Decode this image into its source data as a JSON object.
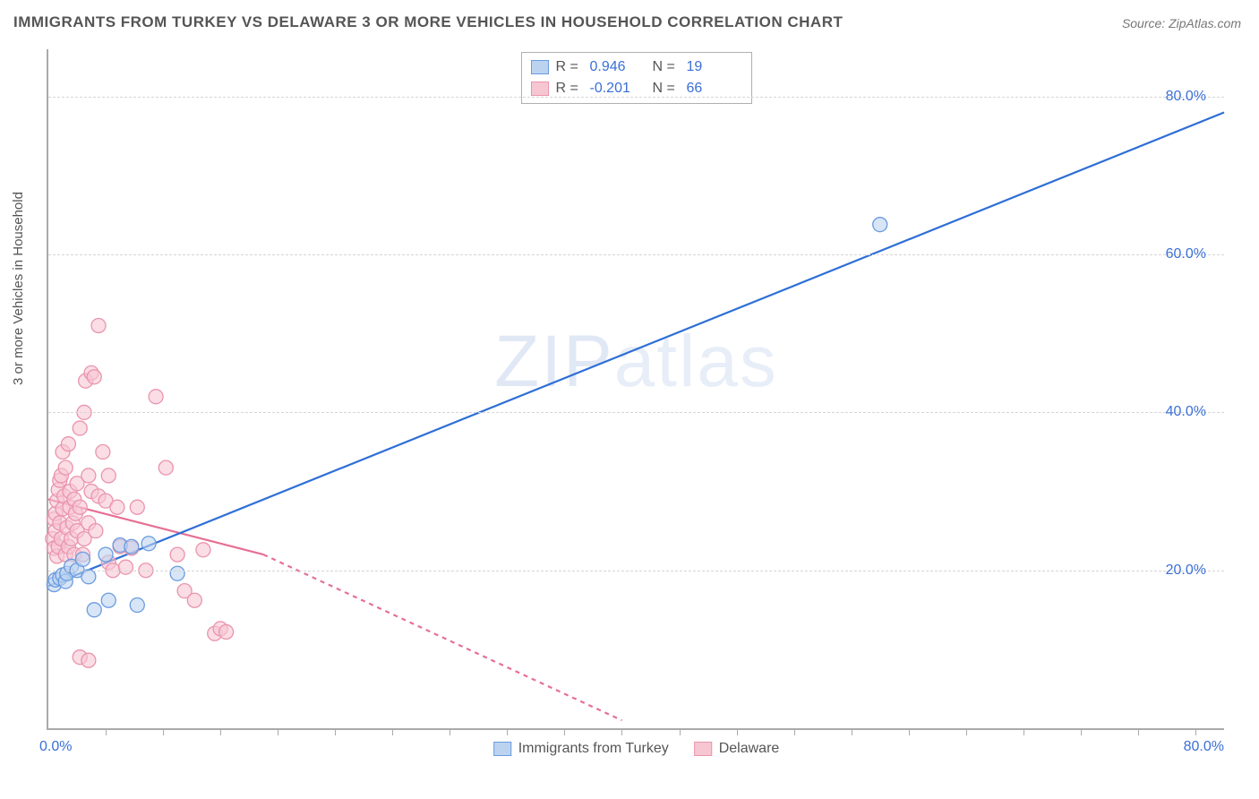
{
  "title": "IMMIGRANTS FROM TURKEY VS DELAWARE 3 OR MORE VEHICLES IN HOUSEHOLD CORRELATION CHART",
  "source": "Source: ZipAtlas.com",
  "watermark": {
    "part1": "ZIP",
    "part2": "atlas"
  },
  "axes": {
    "ylabel": "3 or more Vehicles in Household",
    "x_min": 0,
    "x_max": 82,
    "y_min": 0,
    "y_max": 86,
    "x_tick_left": "0.0%",
    "x_tick_right": "80.0%",
    "y_ticks": [
      {
        "value": 20,
        "label": "20.0%"
      },
      {
        "value": 40,
        "label": "40.0%"
      },
      {
        "value": 60,
        "label": "60.0%"
      },
      {
        "value": 80,
        "label": "80.0%"
      }
    ],
    "x_minor_ticks": [
      4,
      8,
      12,
      16,
      20,
      24,
      28,
      32,
      36,
      40,
      44,
      48,
      52,
      56,
      60,
      64,
      68,
      72,
      76,
      80
    ],
    "axis_color": "#aaaaaa",
    "grid_color": "#d5d5d5",
    "tick_label_color": "#3b6fd6",
    "tick_fontsize": 16,
    "ylabel_fontsize": 15,
    "ylabel_color": "#555555"
  },
  "series_a": {
    "name": "Immigrants from Turkey",
    "color_fill": "#bcd3f0",
    "color_stroke": "#6a9be0",
    "line_color": "#2e6fd6",
    "r_label": "R =",
    "r_value": "0.946",
    "n_label": "N =",
    "n_value": "19",
    "points": [
      [
        0.4,
        18.2
      ],
      [
        0.5,
        18.8
      ],
      [
        0.8,
        19.0
      ],
      [
        1.0,
        19.4
      ],
      [
        1.2,
        18.6
      ],
      [
        1.3,
        19.6
      ],
      [
        1.6,
        20.5
      ],
      [
        2.0,
        20.0
      ],
      [
        2.4,
        21.4
      ],
      [
        2.8,
        19.2
      ],
      [
        3.2,
        15.0
      ],
      [
        4.0,
        22.0
      ],
      [
        4.2,
        16.2
      ],
      [
        5.0,
        23.2
      ],
      [
        5.8,
        23.0
      ],
      [
        6.2,
        15.6
      ],
      [
        7.0,
        23.4
      ],
      [
        9.0,
        19.6
      ],
      [
        58.0,
        63.8
      ]
    ],
    "trend": {
      "x1": 0,
      "y1": 18.0,
      "x2": 82,
      "y2": 78.0
    }
  },
  "series_b": {
    "name": "Delaware",
    "color_fill": "#f6c7d3",
    "color_stroke": "#ea94ad",
    "line_color": "#e66f94",
    "r_label": "R =",
    "r_value": "-0.201",
    "n_label": "N =",
    "n_value": "66",
    "points": [
      [
        0.3,
        24.0
      ],
      [
        0.4,
        26.5
      ],
      [
        0.4,
        22.8
      ],
      [
        0.5,
        27.2
      ],
      [
        0.5,
        25.0
      ],
      [
        0.6,
        21.8
      ],
      [
        0.6,
        28.8
      ],
      [
        0.7,
        23.0
      ],
      [
        0.7,
        30.2
      ],
      [
        0.8,
        26.0
      ],
      [
        0.8,
        31.4
      ],
      [
        0.9,
        24.0
      ],
      [
        0.9,
        32.0
      ],
      [
        1.0,
        27.8
      ],
      [
        1.0,
        35.0
      ],
      [
        1.1,
        29.4
      ],
      [
        1.2,
        22.0
      ],
      [
        1.2,
        33.0
      ],
      [
        1.3,
        25.4
      ],
      [
        1.4,
        36.0
      ],
      [
        1.4,
        23.0
      ],
      [
        1.5,
        28.0
      ],
      [
        1.5,
        30.0
      ],
      [
        1.6,
        24.0
      ],
      [
        1.7,
        26.0
      ],
      [
        1.8,
        22.0
      ],
      [
        1.8,
        29.0
      ],
      [
        1.9,
        27.2
      ],
      [
        2.0,
        25.0
      ],
      [
        2.0,
        31.0
      ],
      [
        2.2,
        38.0
      ],
      [
        2.2,
        28.0
      ],
      [
        2.4,
        22.0
      ],
      [
        2.5,
        24.0
      ],
      [
        2.5,
        40.0
      ],
      [
        2.6,
        44.0
      ],
      [
        2.8,
        26.0
      ],
      [
        2.8,
        32.0
      ],
      [
        3.0,
        45.0
      ],
      [
        3.0,
        30.0
      ],
      [
        3.2,
        44.5
      ],
      [
        3.3,
        25.0
      ],
      [
        3.5,
        51.0
      ],
      [
        3.5,
        29.4
      ],
      [
        3.8,
        35.0
      ],
      [
        4.0,
        28.8
      ],
      [
        4.2,
        32.0
      ],
      [
        4.2,
        21.0
      ],
      [
        4.5,
        20.0
      ],
      [
        4.8,
        28.0
      ],
      [
        5.0,
        23.0
      ],
      [
        5.4,
        20.4
      ],
      [
        5.8,
        22.8
      ],
      [
        6.2,
        28.0
      ],
      [
        6.8,
        20.0
      ],
      [
        7.5,
        42.0
      ],
      [
        8.2,
        33.0
      ],
      [
        9.0,
        22.0
      ],
      [
        9.5,
        17.4
      ],
      [
        10.2,
        16.2
      ],
      [
        10.8,
        22.6
      ],
      [
        11.6,
        12.0
      ],
      [
        12.0,
        12.6
      ],
      [
        12.4,
        12.2
      ],
      [
        2.2,
        9.0
      ],
      [
        2.8,
        8.6
      ]
    ],
    "trend_solid": {
      "x1": 0,
      "y1": 29.0,
      "x2": 15,
      "y2": 22.0
    },
    "trend_dash": {
      "x1": 15,
      "y1": 22.0,
      "x2": 40,
      "y2": 1.0
    }
  },
  "legend_bottom": {
    "item_a": "Immigrants from Turkey",
    "item_b": "Delaware"
  },
  "marker_radius": 8,
  "line_width": 2.2,
  "background_color": "#ffffff"
}
